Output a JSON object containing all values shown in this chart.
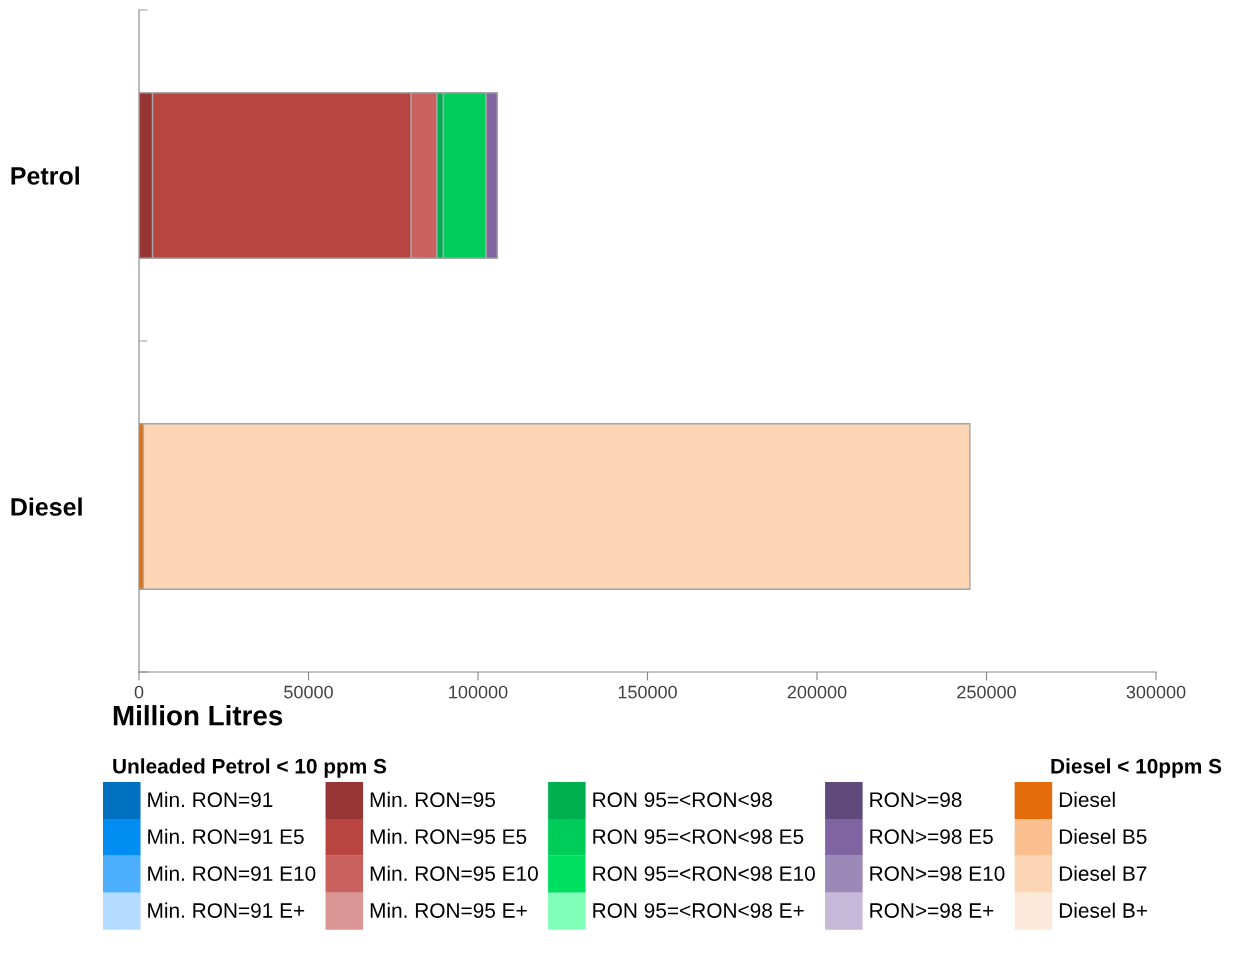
{
  "chart_data": {
    "type": "bar",
    "orientation": "horizontal",
    "stacked": true,
    "categories": [
      "Petrol",
      "Diesel"
    ],
    "xlabel": "Million Litres",
    "xlim": [
      0,
      300000
    ],
    "xticks": [
      0,
      50000,
      100000,
      150000,
      200000,
      250000,
      300000
    ],
    "grid": false,
    "legend": "bottom",
    "annotations": [
      "Unleaded Petrol < 10 ppm S",
      "Diesel < 10ppm S"
    ],
    "series": [
      {
        "name": "Min. RON=91",
        "color": "#0070c0",
        "values": [
          0,
          0
        ]
      },
      {
        "name": "Min. RON=91 E5",
        "color": "#008cf0",
        "values": [
          0,
          0
        ]
      },
      {
        "name": "Min. RON=91 E10",
        "color": "#4db0ff",
        "values": [
          0,
          0
        ]
      },
      {
        "name": "Min. RON=91 E+",
        "color": "#b3dcff",
        "values": [
          0,
          0
        ]
      },
      {
        "name": "Min. RON=95",
        "color": "#963634",
        "values": [
          4000,
          0
        ]
      },
      {
        "name": "Min. RON=95 E5",
        "color": "#b8453f",
        "values": [
          76300,
          0
        ]
      },
      {
        "name": "Min. RON=95 E10",
        "color": "#c9625f",
        "values": [
          7600,
          0
        ]
      },
      {
        "name": "Min. RON=95 E+",
        "color": "#da9694",
        "values": [
          0,
          0
        ]
      },
      {
        "name": "RON 95=<RON<98",
        "color": "#00b050",
        "values": [
          1900,
          0
        ]
      },
      {
        "name": "RON 95=<RON<98 E5",
        "color": "#00cc5a",
        "values": [
          12600,
          0
        ]
      },
      {
        "name": "RON 95=<RON<98 E10",
        "color": "#00e060",
        "values": [
          0,
          0
        ]
      },
      {
        "name": "RON 95=<RON<98 E+",
        "color": "#80ffb8",
        "values": [
          0,
          0
        ]
      },
      {
        "name": "RON>=98",
        "color": "#604a7b",
        "values": [
          0,
          0
        ]
      },
      {
        "name": "RON>=98 E5",
        "color": "#8064a2",
        "values": [
          3300,
          0
        ]
      },
      {
        "name": "RON>=98 E10",
        "color": "#9b8ab8",
        "values": [
          0,
          0
        ]
      },
      {
        "name": "RON>=98 E+",
        "color": "#c5b8d9",
        "values": [
          0,
          0
        ]
      },
      {
        "name": "Diesel",
        "color": "#e46c0a",
        "values": [
          0,
          1300
        ]
      },
      {
        "name": "Diesel B5",
        "color": "#fabf8f",
        "values": [
          0,
          0
        ]
      },
      {
        "name": "Diesel B7",
        "color": "#fcd5b4",
        "values": [
          0,
          243800
        ]
      },
      {
        "name": "Diesel B+",
        "color": "#fde9d9",
        "values": [
          0,
          0
        ]
      }
    ]
  }
}
